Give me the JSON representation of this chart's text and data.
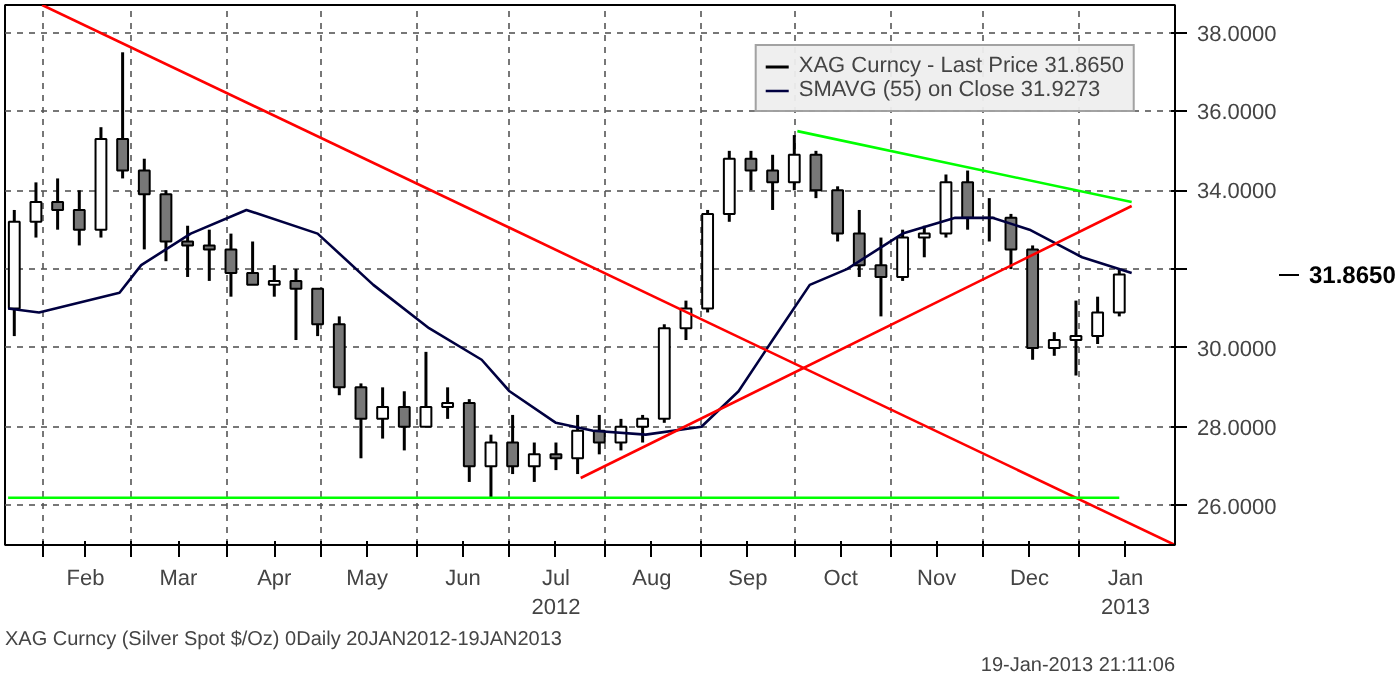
{
  "chart_data": {
    "type": "candlestick",
    "series": [
      {
        "name": "XAG Curncy - Last Price 31.8650",
        "color": "#000000",
        "x": [
          "2012-01-23",
          "2012-01-30",
          "2012-02-06",
          "2012-02-13",
          "2012-02-20",
          "2012-02-27",
          "2012-03-05",
          "2012-03-12",
          "2012-03-19",
          "2012-03-26",
          "2012-04-02",
          "2012-04-09",
          "2012-04-16",
          "2012-04-23",
          "2012-04-30",
          "2012-05-07",
          "2012-05-14",
          "2012-05-21",
          "2012-05-28",
          "2012-06-04",
          "2012-06-11",
          "2012-06-18",
          "2012-06-25",
          "2012-07-02",
          "2012-07-09",
          "2012-07-16",
          "2012-07-23",
          "2012-07-30",
          "2012-08-06",
          "2012-08-13",
          "2012-08-20",
          "2012-08-27",
          "2012-09-03",
          "2012-09-10",
          "2012-09-17",
          "2012-09-24",
          "2012-10-01",
          "2012-10-08",
          "2012-10-15",
          "2012-10-22",
          "2012-10-29",
          "2012-11-05",
          "2012-11-12",
          "2012-11-19",
          "2012-11-26",
          "2012-12-03",
          "2012-12-10",
          "2012-12-17",
          "2012-12-24",
          "2012-12-31",
          "2013-01-07",
          "2013-01-14"
        ],
        "ohlc": [
          [
            31.0,
            33.5,
            30.3,
            33.2
          ],
          [
            33.2,
            34.2,
            32.8,
            33.7
          ],
          [
            33.7,
            34.3,
            33.0,
            33.5
          ],
          [
            33.5,
            34.0,
            32.6,
            33.0
          ],
          [
            33.0,
            35.6,
            32.8,
            35.3
          ],
          [
            35.3,
            37.5,
            34.3,
            34.5
          ],
          [
            34.5,
            34.8,
            32.5,
            33.9
          ],
          [
            33.9,
            34.0,
            32.2,
            32.7
          ],
          [
            32.7,
            33.1,
            31.8,
            32.6
          ],
          [
            32.6,
            33.0,
            31.7,
            32.5
          ],
          [
            32.5,
            32.9,
            31.3,
            31.9
          ],
          [
            31.9,
            32.7,
            31.6,
            31.6
          ],
          [
            31.6,
            32.1,
            31.3,
            31.7
          ],
          [
            31.7,
            32.0,
            30.2,
            31.5
          ],
          [
            31.5,
            31.5,
            30.3,
            30.6
          ],
          [
            30.6,
            30.8,
            28.8,
            29.0
          ],
          [
            29.0,
            29.1,
            27.2,
            28.2
          ],
          [
            28.2,
            29.0,
            27.7,
            28.5
          ],
          [
            28.5,
            28.9,
            27.4,
            28.0
          ],
          [
            28.0,
            29.9,
            28.0,
            28.5
          ],
          [
            28.5,
            29.0,
            28.2,
            28.6
          ],
          [
            28.6,
            28.7,
            26.6,
            27.0
          ],
          [
            27.0,
            27.8,
            26.2,
            27.6
          ],
          [
            27.6,
            28.3,
            26.8,
            27.0
          ],
          [
            27.0,
            27.6,
            26.6,
            27.3
          ],
          [
            27.3,
            27.6,
            26.9,
            27.2
          ],
          [
            27.2,
            28.3,
            26.8,
            27.9
          ],
          [
            27.9,
            28.3,
            27.3,
            27.6
          ],
          [
            27.6,
            28.2,
            27.4,
            28.0
          ],
          [
            28.0,
            28.3,
            27.6,
            28.2
          ],
          [
            28.2,
            30.6,
            28.1,
            30.5
          ],
          [
            30.5,
            31.2,
            30.2,
            31.0
          ],
          [
            31.0,
            33.5,
            30.9,
            33.4
          ],
          [
            33.4,
            35.0,
            33.2,
            34.8
          ],
          [
            34.8,
            35.0,
            34.0,
            34.5
          ],
          [
            34.5,
            34.9,
            33.5,
            34.2
          ],
          [
            34.2,
            35.4,
            34.0,
            34.9
          ],
          [
            34.9,
            35.0,
            33.8,
            34.0
          ],
          [
            34.0,
            34.1,
            32.7,
            32.9
          ],
          [
            32.9,
            33.5,
            31.8,
            32.1
          ],
          [
            32.1,
            32.8,
            30.8,
            31.8
          ],
          [
            31.8,
            33.0,
            31.7,
            32.8
          ],
          [
            32.8,
            33.1,
            32.3,
            32.9
          ],
          [
            32.9,
            34.4,
            32.8,
            34.2
          ],
          [
            34.2,
            34.5,
            33.0,
            33.3
          ],
          [
            33.3,
            33.8,
            32.7,
            33.3
          ],
          [
            33.3,
            33.4,
            32.0,
            32.5
          ],
          [
            32.5,
            32.6,
            29.7,
            30.0
          ],
          [
            30.0,
            30.4,
            29.8,
            30.2
          ],
          [
            30.2,
            31.2,
            29.3,
            30.3
          ],
          [
            30.3,
            31.3,
            30.1,
            30.9
          ],
          [
            30.9,
            32.0,
            30.8,
            31.865
          ]
        ]
      },
      {
        "type": "line",
        "name": "SMAVG (55) on Close 31.9273",
        "color": "#000040",
        "x": [
          "2012-01-21",
          "2012-01-31",
          "2012-02-26",
          "2012-03-04",
          "2012-03-20",
          "2012-04-07",
          "2012-04-30",
          "2012-05-18",
          "2012-06-05",
          "2012-06-22",
          "2012-07-01",
          "2012-07-16",
          "2012-07-28",
          "2012-08-14",
          "2012-09-01",
          "2012-09-13",
          "2012-09-24",
          "2012-10-06",
          "2012-10-18",
          "2012-11-05",
          "2012-11-22",
          "2012-12-04",
          "2012-12-16",
          "2013-01-02",
          "2013-01-18"
        ],
        "values": [
          31.0,
          30.9,
          31.4,
          32.1,
          32.9,
          33.5,
          32.9,
          31.6,
          30.5,
          29.7,
          28.9,
          28.1,
          27.9,
          27.8,
          28.0,
          28.9,
          30.2,
          31.6,
          32.0,
          32.9,
          33.3,
          33.3,
          33.0,
          32.3,
          31.9
        ]
      },
      {
        "type": "line",
        "color": "#ff0000",
        "x": [
          "2012-02-01",
          "2013-02-01"
        ],
        "values": [
          38.7,
          25.0
        ]
      },
      {
        "type": "line",
        "color": "#ff0000",
        "x": [
          "2012-07-24",
          "2013-01-18"
        ],
        "values": [
          26.7,
          33.6
        ]
      },
      {
        "type": "line",
        "color": "#00ff00",
        "x": [
          "2012-10-02",
          "2013-01-18"
        ],
        "values": [
          35.5,
          33.7
        ]
      },
      {
        "type": "line",
        "color": "#00ff00",
        "x": [
          "2012-01-21",
          "2013-01-14"
        ],
        "values": [
          26.2,
          26.2
        ]
      }
    ],
    "xlim": [
      "2012-01-20",
      "2013-02-01"
    ],
    "xticks": [
      {
        "value": "2012-02-01",
        "label": null
      },
      {
        "value": "2012-03-01",
        "label": null
      },
      {
        "value": "2012-04-01",
        "label": null
      },
      {
        "value": "2012-05-01",
        "label": null
      },
      {
        "value": "2012-06-01",
        "label": null
      },
      {
        "value": "2012-07-01",
        "label": null
      },
      {
        "value": "2012-08-01",
        "label": null
      },
      {
        "value": "2012-09-01",
        "label": null
      },
      {
        "value": "2012-10-01",
        "label": null
      },
      {
        "value": "2012-11-01",
        "label": null
      },
      {
        "value": "2012-12-01",
        "label": null
      },
      {
        "value": "2013-01-01",
        "label": null
      },
      {
        "value": "2012-02-15",
        "label": "Feb"
      },
      {
        "value": "2012-03-16",
        "label": "Mar"
      },
      {
        "value": "2012-04-16",
        "label": "Apr"
      },
      {
        "value": "2012-05-16",
        "label": "May"
      },
      {
        "value": "2012-06-16",
        "label": "Jun"
      },
      {
        "value": "2012-07-16",
        "label": "Jul\n2012"
      },
      {
        "value": "2012-08-16",
        "label": "Aug"
      },
      {
        "value": "2012-09-16",
        "label": "Sep"
      },
      {
        "value": "2012-10-16",
        "label": "Oct"
      },
      {
        "value": "2012-11-16",
        "label": "Nov"
      },
      {
        "value": "2012-12-16",
        "label": "Dec"
      },
      {
        "value": "2013-01-16",
        "label": "Jan\n2013"
      }
    ],
    "ylim": [
      25.0,
      38.7
    ],
    "yticks": [
      {
        "value": 26,
        "label": "26.0000"
      },
      {
        "value": 28,
        "label": "28.0000"
      },
      {
        "value": 30,
        "label": "30.0000"
      },
      {
        "value": 32,
        "label": null
      },
      {
        "value": 34,
        "label": "34.0000"
      },
      {
        "value": 36,
        "label": "36.0000"
      },
      {
        "value": 38,
        "label": "38.0000"
      }
    ],
    "grid": true,
    "legend": "top right",
    "annotations": [
      "31.8650",
      "XAG Curncy (Silver Spot  $/Oz) 0Daily 20JAN2012-19JAN2013",
      "19-Jan-2013 21:11:06"
    ]
  }
}
